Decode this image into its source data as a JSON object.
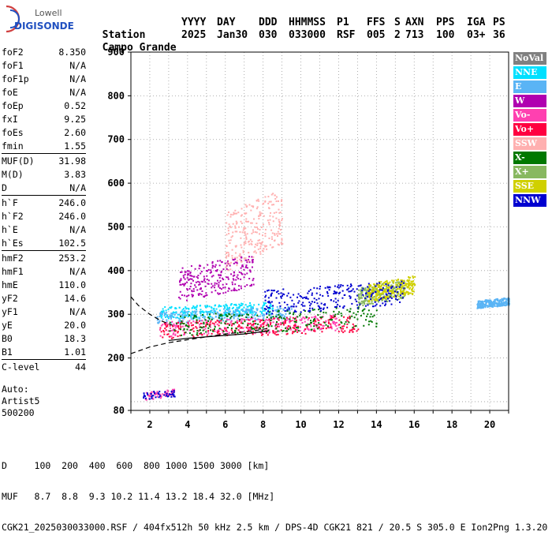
{
  "logo": {
    "top": "Lowell",
    "bottom": "DIGISONDE"
  },
  "header": {
    "labels": [
      "Station",
      "YYYY",
      "DAY",
      "DDD",
      "HHMMSS",
      "P1",
      "FFS",
      "S",
      "AXN",
      "PPS",
      "IGA",
      "PS"
    ],
    "values": [
      "Campo Grande",
      "2025",
      "Jan30",
      "030",
      "033000",
      "RSF",
      "005",
      "2",
      "713",
      "100",
      "03+",
      "36"
    ]
  },
  "params": [
    [
      {
        "k": "foF2",
        "v": "8.350"
      },
      {
        "k": "foF1",
        "v": "N/A"
      },
      {
        "k": "foF1p",
        "v": "N/A"
      },
      {
        "k": "foE",
        "v": "N/A"
      },
      {
        "k": "foEp",
        "v": "0.52"
      },
      {
        "k": "fxI",
        "v": "9.25"
      },
      {
        "k": "foEs",
        "v": "2.60"
      },
      {
        "k": "fmin",
        "v": "1.55"
      }
    ],
    [
      {
        "k": "MUF(D)",
        "v": "31.98"
      },
      {
        "k": "M(D)",
        "v": "3.83"
      },
      {
        "k": "D",
        "v": "N/A"
      }
    ],
    [
      {
        "k": "h`F",
        "v": "246.0"
      },
      {
        "k": "h`F2",
        "v": "246.0"
      },
      {
        "k": "h`E",
        "v": "N/A"
      },
      {
        "k": "h`Es",
        "v": "102.5"
      }
    ],
    [
      {
        "k": "hmF2",
        "v": "253.2"
      },
      {
        "k": "hmF1",
        "v": "N/A"
      },
      {
        "k": "hmE",
        "v": "110.0"
      },
      {
        "k": "yF2",
        "v": "14.6"
      },
      {
        "k": "yF1",
        "v": "N/A"
      },
      {
        "k": "yE",
        "v": "20.0"
      },
      {
        "k": "B0",
        "v": "18.3"
      },
      {
        "k": "B1",
        "v": "1.01"
      }
    ],
    [
      {
        "k": "C-level",
        "v": "44"
      }
    ]
  ],
  "auto": {
    "line1": "Auto:",
    "line2": "Artist5",
    "line3": "500200"
  },
  "legend": [
    {
      "label": "NoVal",
      "color": "#808080"
    },
    {
      "label": "NNE",
      "color": "#00e0ff"
    },
    {
      "label": "E",
      "color": "#5ab4f5"
    },
    {
      "label": "W",
      "color": "#b000b0"
    },
    {
      "label": "Vo-",
      "color": "#ff40b0"
    },
    {
      "label": "Vo+",
      "color": "#ff0040"
    },
    {
      "label": "SSW",
      "color": "#ffb0b0"
    },
    {
      "label": "X-",
      "color": "#007800"
    },
    {
      "label": "X+",
      "color": "#88b860"
    },
    {
      "label": "SSE",
      "color": "#d0d000"
    },
    {
      "label": "NNW",
      "color": "#0000d0"
    }
  ],
  "bottom": {
    "line1": "D     100  200  400  600  800 1000 1500 3000 [km]",
    "line2": "MUF   8.7  8.8  9.3 10.2 11.4 13.2 18.4 32.0 [MHz]",
    "line3": "CGK21_2025030033000.RSF / 404fx512h 50 kHz 2.5 km / DPS-4D CGK21 821 / 20.5 S 305.0 E Ion2Png 1.3.20"
  },
  "chart_data": {
    "type": "scatter",
    "title": "",
    "xlabel": "",
    "ylabel": "",
    "xlim": [
      1,
      21
    ],
    "ylim": [
      80,
      900
    ],
    "xticks": [
      2,
      4,
      6,
      8,
      10,
      12,
      14,
      16,
      18,
      20
    ],
    "yticks": [
      80,
      200,
      300,
      400,
      500,
      600,
      700,
      800,
      900
    ],
    "grid": true,
    "legend_position": "right",
    "series": [
      {
        "name": "NNE",
        "color": "#00e0ff",
        "region": {
          "x": [
            2.5,
            8.5
          ],
          "y": [
            290,
            330
          ]
        }
      },
      {
        "name": "E",
        "color": "#5ab4f5",
        "region": {
          "x": [
            2.3,
            9.5
          ],
          "y": [
            280,
            320
          ]
        }
      },
      {
        "name": "E",
        "color": "#5ab4f5",
        "region": {
          "x": [
            19.3,
            21
          ],
          "y": [
            315,
            340
          ]
        }
      },
      {
        "name": "W",
        "color": "#b000b0",
        "region": {
          "x": [
            3.5,
            7.5
          ],
          "y": [
            330,
            440
          ]
        }
      },
      {
        "name": "Vo-",
        "color": "#ff40b0",
        "region": {
          "x": [
            2.5,
            12
          ],
          "y": [
            250,
            300
          ]
        }
      },
      {
        "name": "Vo+",
        "color": "#ff0040",
        "region": {
          "x": [
            2.5,
            13
          ],
          "y": [
            245,
            300
          ]
        }
      },
      {
        "name": "X-",
        "color": "#007800",
        "region": {
          "x": [
            3,
            14
          ],
          "y": [
            250,
            320
          ]
        }
      },
      {
        "name": "X+",
        "color": "#88b860",
        "region": {
          "x": [
            13,
            15.5
          ],
          "y": [
            320,
            380
          ]
        }
      },
      {
        "name": "SSE",
        "color": "#d0d000",
        "region": {
          "x": [
            13.5,
            16
          ],
          "y": [
            330,
            390
          ]
        }
      },
      {
        "name": "NNW",
        "color": "#0000d0",
        "region": {
          "x": [
            8,
            15.5
          ],
          "y": [
            300,
            380
          ]
        }
      },
      {
        "name": "SSW",
        "color": "#ffb0b0",
        "region": {
          "x": [
            6,
            9
          ],
          "y": [
            400,
            590
          ]
        }
      }
    ],
    "es_layer": {
      "x": [
        1.6,
        3.3
      ],
      "y": [
        105,
        130
      ]
    },
    "profile_curve": {
      "x": [
        1.0,
        1.4,
        2.0,
        2.6,
        3.2
      ],
      "y": [
        340,
        320,
        300,
        285,
        275
      ]
    },
    "profile_curve_lower": {
      "x": [
        1.0,
        2.0,
        3.0,
        4.5,
        6.0,
        7.5,
        8.3
      ],
      "y": [
        210,
        225,
        235,
        245,
        255,
        262,
        268
      ]
    },
    "solid_curve": {
      "x": [
        3.0,
        4.0,
        5.5,
        7.0,
        8.3
      ],
      "y": [
        240,
        245,
        250,
        255,
        262
      ]
    }
  }
}
